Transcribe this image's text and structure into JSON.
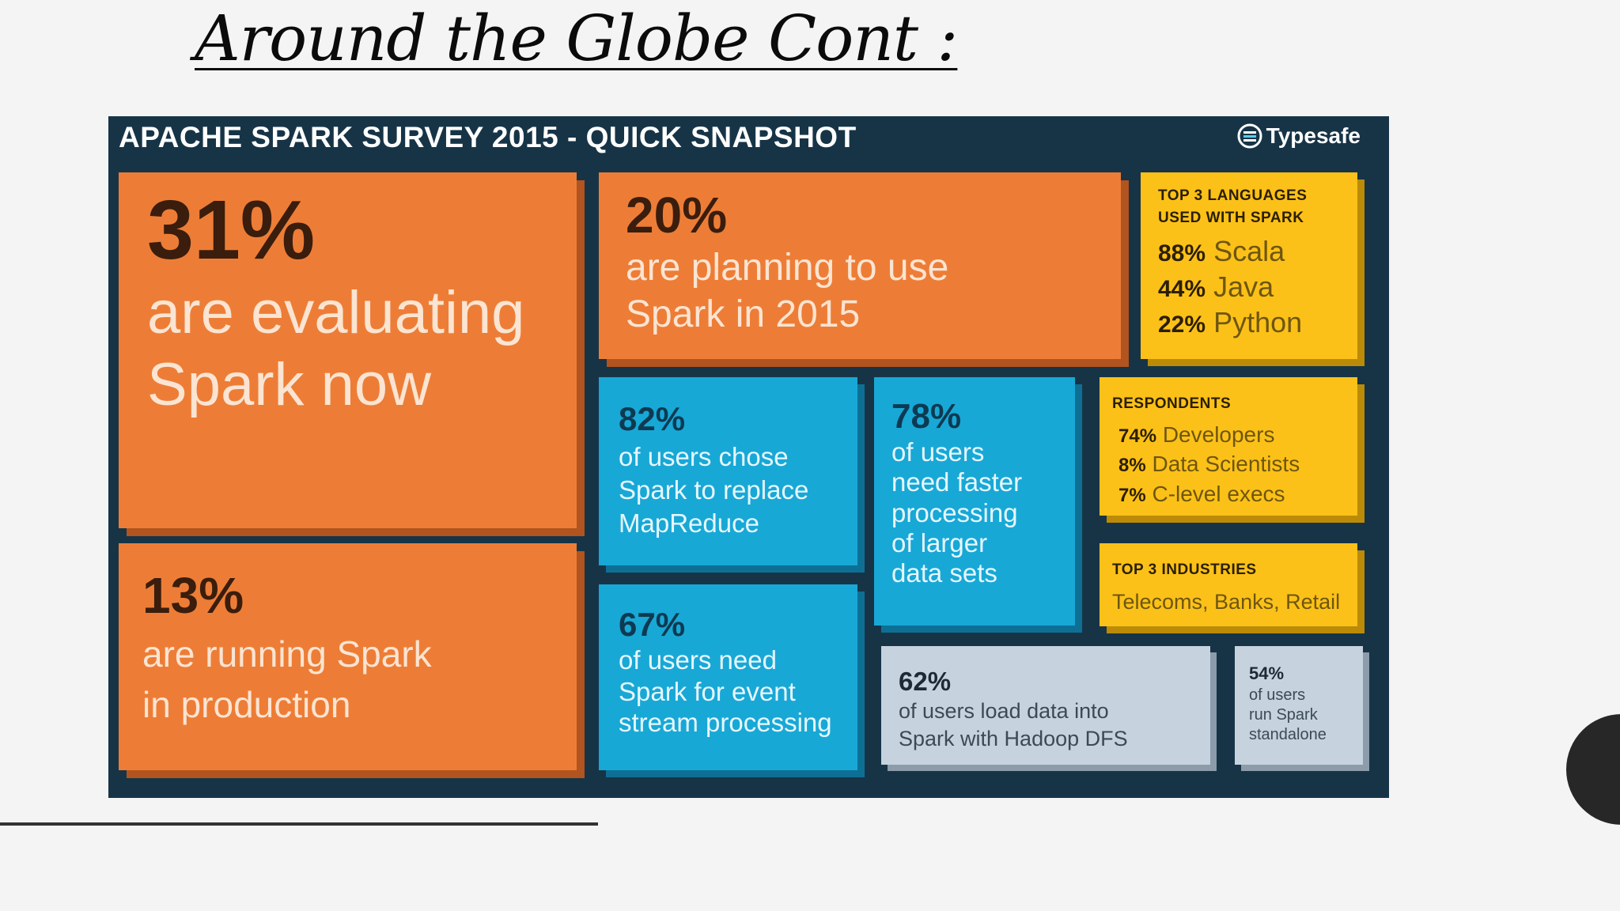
{
  "slide": {
    "title": "Around the Globe Cont :"
  },
  "infographic": {
    "header": "APACHE SPARK SURVEY 2015 - QUICK SNAPSHOT",
    "brand": "Typesafe",
    "t31": {
      "pct": "31%",
      "l1": "are evaluating",
      "l2": "Spark now"
    },
    "t20": {
      "pct": "20%",
      "l1": "are planning to use",
      "l2": "Spark in 2015"
    },
    "t13": {
      "pct": "13%",
      "l1": "are running Spark",
      "l2": "in production"
    },
    "t82": {
      "pct": "82%",
      "l1": "of users chose",
      "l2": "Spark to replace",
      "l3": "MapReduce"
    },
    "t78": {
      "pct": "78%",
      "l1": "of users",
      "l2": "need faster",
      "l3": "processing",
      "l4": "of larger",
      "l5": "data sets"
    },
    "t67": {
      "pct": "67%",
      "l1": "of users need",
      "l2": "Spark for event",
      "l3": "stream processing"
    },
    "t62": {
      "pct": "62%",
      "l1": "of users load data into",
      "l2": "Spark with Hadoop DFS"
    },
    "t54": {
      "pct": "54%",
      "l1": "of users",
      "l2": "run Spark",
      "l3": "standalone"
    },
    "languages": {
      "heading_l1": "TOP 3 LANGUAGES",
      "heading_l2": "USED WITH SPARK",
      "items": [
        {
          "pct": "88%",
          "name": "Scala"
        },
        {
          "pct": "44%",
          "name": "Java"
        },
        {
          "pct": "22%",
          "name": "Python"
        }
      ]
    },
    "respondents": {
      "heading": "RESPONDENTS",
      "items": [
        {
          "pct": "74%",
          "name": "Developers"
        },
        {
          "pct": "8%",
          "name": "Data Scientists"
        },
        {
          "pct": "7%",
          "name": "C-level execs"
        }
      ]
    },
    "industries": {
      "heading": "TOP 3 INDUSTRIES",
      "text": "Telecoms, Banks, Retail"
    }
  },
  "colors": {
    "navy": "#173447",
    "orange": "#ed7d36",
    "blue": "#18a8d6",
    "yellow": "#fcc118",
    "grey": "#c6d3df"
  }
}
